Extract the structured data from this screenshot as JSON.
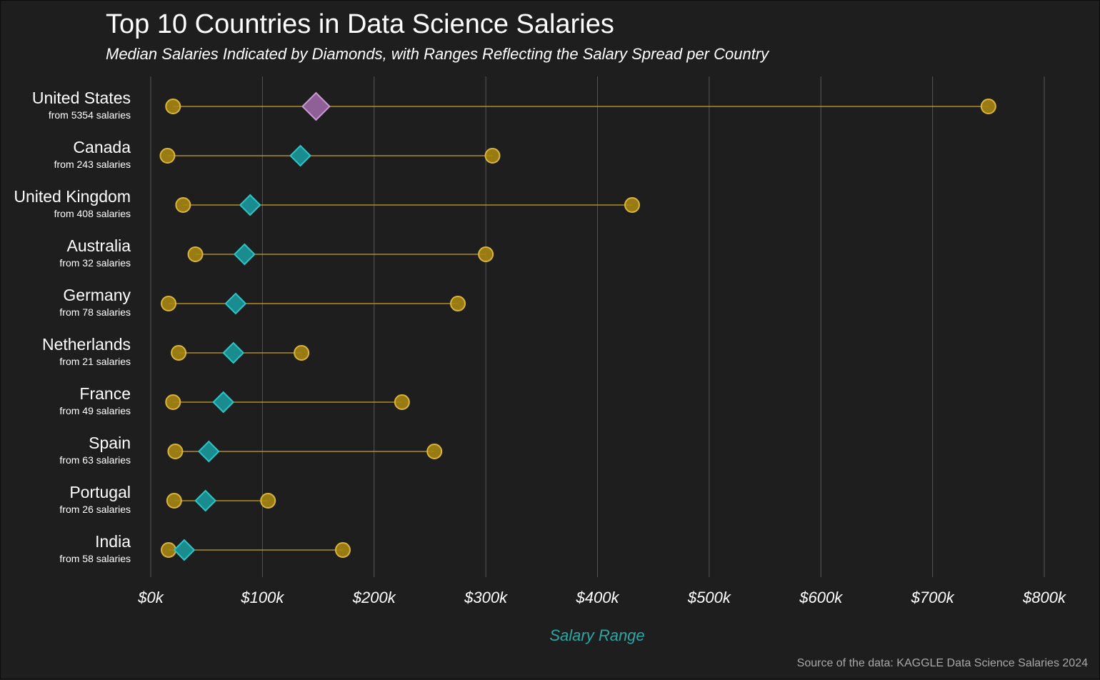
{
  "chart_data": {
    "type": "dumbbell",
    "title": "Top 10 Countries in Data Science Salaries",
    "subtitle": "Median Salaries Indicated by Diamonds, with Ranges Reflecting the Salary Spread per Country",
    "xlabel": "Salary Range",
    "source": "Source of the data: KAGGLE Data Science Salaries 2024",
    "x_ticks": [
      0,
      100000,
      200000,
      300000,
      400000,
      500000,
      600000,
      700000,
      800000
    ],
    "x_tick_labels": [
      "$0k",
      "$100k",
      "$200k",
      "$300k",
      "$400k",
      "$500k",
      "$600k",
      "$700k",
      "$800k"
    ],
    "xlim": [
      0,
      800000
    ],
    "grid": "vertical",
    "colors": {
      "background": "#1e1e1e",
      "range_line": "#c9a227",
      "endpoint": "#a68512",
      "median": "#1a8c8f",
      "median_top": "#8f5f98",
      "axis_label": "#2aa6a6"
    },
    "countries": [
      {
        "name": "United States",
        "count_label": "from 5354 salaries",
        "min": 20000,
        "median": 148000,
        "max": 750000
      },
      {
        "name": "Canada",
        "count_label": "from 243 salaries",
        "min": 15000,
        "median": 134000,
        "max": 306000
      },
      {
        "name": "United Kingdom",
        "count_label": "from 408 salaries",
        "min": 29000,
        "median": 89000,
        "max": 431000
      },
      {
        "name": "Australia",
        "count_label": "from 32 salaries",
        "min": 40000,
        "median": 84000,
        "max": 300000
      },
      {
        "name": "Germany",
        "count_label": "from 78 salaries",
        "min": 16000,
        "median": 76000,
        "max": 275000
      },
      {
        "name": "Netherlands",
        "count_label": "from 21 salaries",
        "min": 25000,
        "median": 74000,
        "max": 135000
      },
      {
        "name": "France",
        "count_label": "from 49 salaries",
        "min": 20000,
        "median": 65000,
        "max": 225000
      },
      {
        "name": "Spain",
        "count_label": "from 63 salaries",
        "min": 22000,
        "median": 52000,
        "max": 254000
      },
      {
        "name": "Portugal",
        "count_label": "from 26 salaries",
        "min": 21000,
        "median": 49000,
        "max": 105000
      },
      {
        "name": "India",
        "count_label": "from 58 salaries",
        "min": 16000,
        "median": 30000,
        "max": 172000
      }
    ]
  }
}
